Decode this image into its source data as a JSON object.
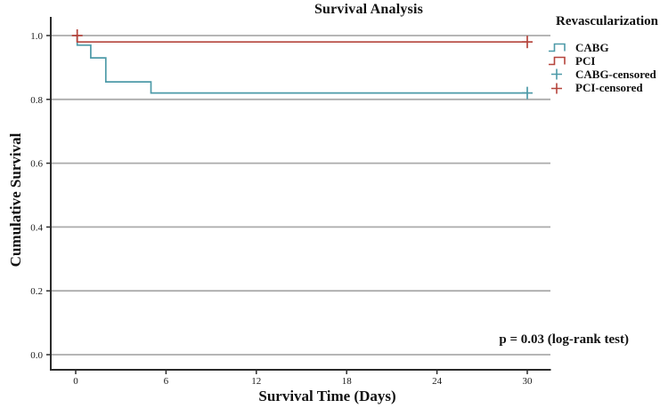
{
  "title": "Survival Analysis",
  "legend": {
    "title": "Revascularization",
    "items": [
      {
        "label": "CABG",
        "symbol": "step",
        "color": "#4D9AA8"
      },
      {
        "label": "PCI",
        "symbol": "step",
        "color": "#B5443C"
      },
      {
        "label": "CABG-censored",
        "symbol": "plus",
        "color": "#4D9AA8"
      },
      {
        "label": "PCI-censored",
        "symbol": "plus",
        "color": "#B5443C"
      }
    ]
  },
  "annotation": "p = 0.03 (log-rank test)",
  "colors": {
    "cabg": "#4D9AA8",
    "pci": "#B5443C",
    "gridline": "#ABABAB",
    "axis": "#2B2B2B"
  },
  "chart_data": {
    "type": "line",
    "subtype": "kaplan-meier-step",
    "title": "Survival Analysis",
    "xlabel": "Survival Time (Days)",
    "ylabel": "Cumulative Survival",
    "xticks": [
      0,
      6,
      12,
      18,
      24,
      30
    ],
    "yticks": [
      "0.0",
      "0.2",
      "0.4",
      "0.6",
      "0.8",
      "1.0"
    ],
    "xlim": [
      -1.6,
      31.5
    ],
    "ylim": [
      -0.05,
      1.06
    ],
    "grid": true,
    "legend_position": "top-right-outside",
    "annotation": "p = 0.03 (log-rank test)",
    "series": [
      {
        "name": "CABG",
        "color": "#4D9AA8",
        "steps": [
          [
            0,
            1.0
          ],
          [
            0.1,
            1.0
          ],
          [
            0.1,
            0.97
          ],
          [
            1,
            0.97
          ],
          [
            1,
            0.93
          ],
          [
            2,
            0.93
          ],
          [
            2,
            0.855
          ],
          [
            5,
            0.855
          ],
          [
            5,
            0.82
          ],
          [
            30,
            0.82
          ]
        ],
        "censored": [
          [
            30,
            0.82
          ]
        ]
      },
      {
        "name": "PCI",
        "color": "#B5443C",
        "steps": [
          [
            0,
            1.0
          ],
          [
            0.1,
            1.0
          ],
          [
            0.1,
            0.98
          ],
          [
            30,
            0.98
          ]
        ],
        "censored": [
          [
            0.1,
            1.0
          ],
          [
            30,
            0.98
          ]
        ]
      }
    ]
  }
}
